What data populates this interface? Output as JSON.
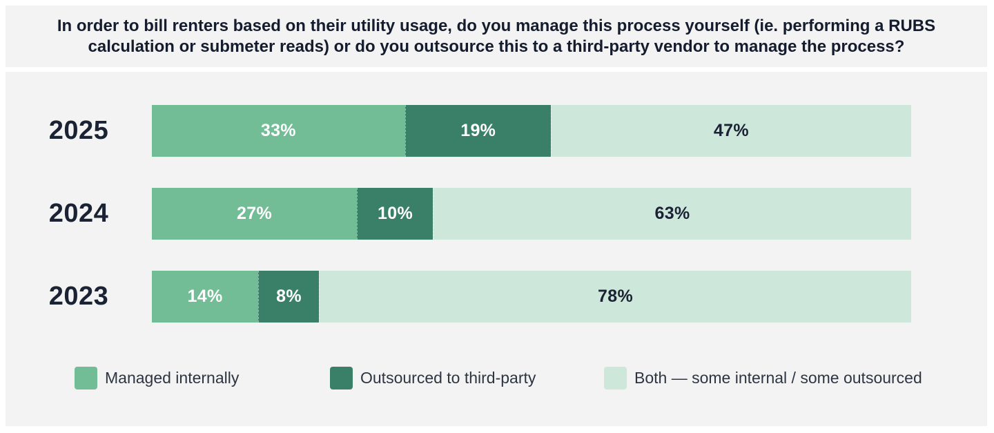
{
  "title": "In order to bill renters based on their utility usage, do you manage this process yourself (ie. performing a RUBS calculation or submeter reads) or do you outsource this to a third-party vendor to manage the process?",
  "colors": {
    "page_background": "#ffffff",
    "panel_background": "#f2f3f2",
    "title_text": "#151c2e",
    "year_text": "#1b2233",
    "series_colors": [
      "#72bc96",
      "#3a8069",
      "#cde8db"
    ],
    "segment_label_colors": [
      "#ffffff",
      "#ffffff",
      "#1b2233"
    ]
  },
  "legend": {
    "items": [
      {
        "label": "Managed internally",
        "color": "#72bc96"
      },
      {
        "label": "Outsourced to third-party",
        "color": "#3a8069"
      },
      {
        "label": "Both — some internal / some outsourced",
        "color": "#cde8db"
      }
    ]
  },
  "chart_data": {
    "type": "bar",
    "orientation": "horizontal",
    "stacked": true,
    "title": "In order to bill renters based on their utility usage, do you manage this process yourself (ie. performing a RUBS calculation or submeter reads) or do you outsource this to a third-party vendor to manage the process?",
    "categories": [
      "2025",
      "2024",
      "2023"
    ],
    "series": [
      {
        "name": "Managed internally",
        "values": [
          33,
          27,
          14
        ]
      },
      {
        "name": "Outsourced to third-party",
        "values": [
          19,
          10,
          8
        ]
      },
      {
        "name": "Both — some internal / some outsourced",
        "values": [
          47,
          63,
          78
        ]
      }
    ],
    "value_format": "percent",
    "value_suffix": "%",
    "xlim": [
      0,
      100
    ],
    "grid": false,
    "legend_position": "bottom"
  }
}
